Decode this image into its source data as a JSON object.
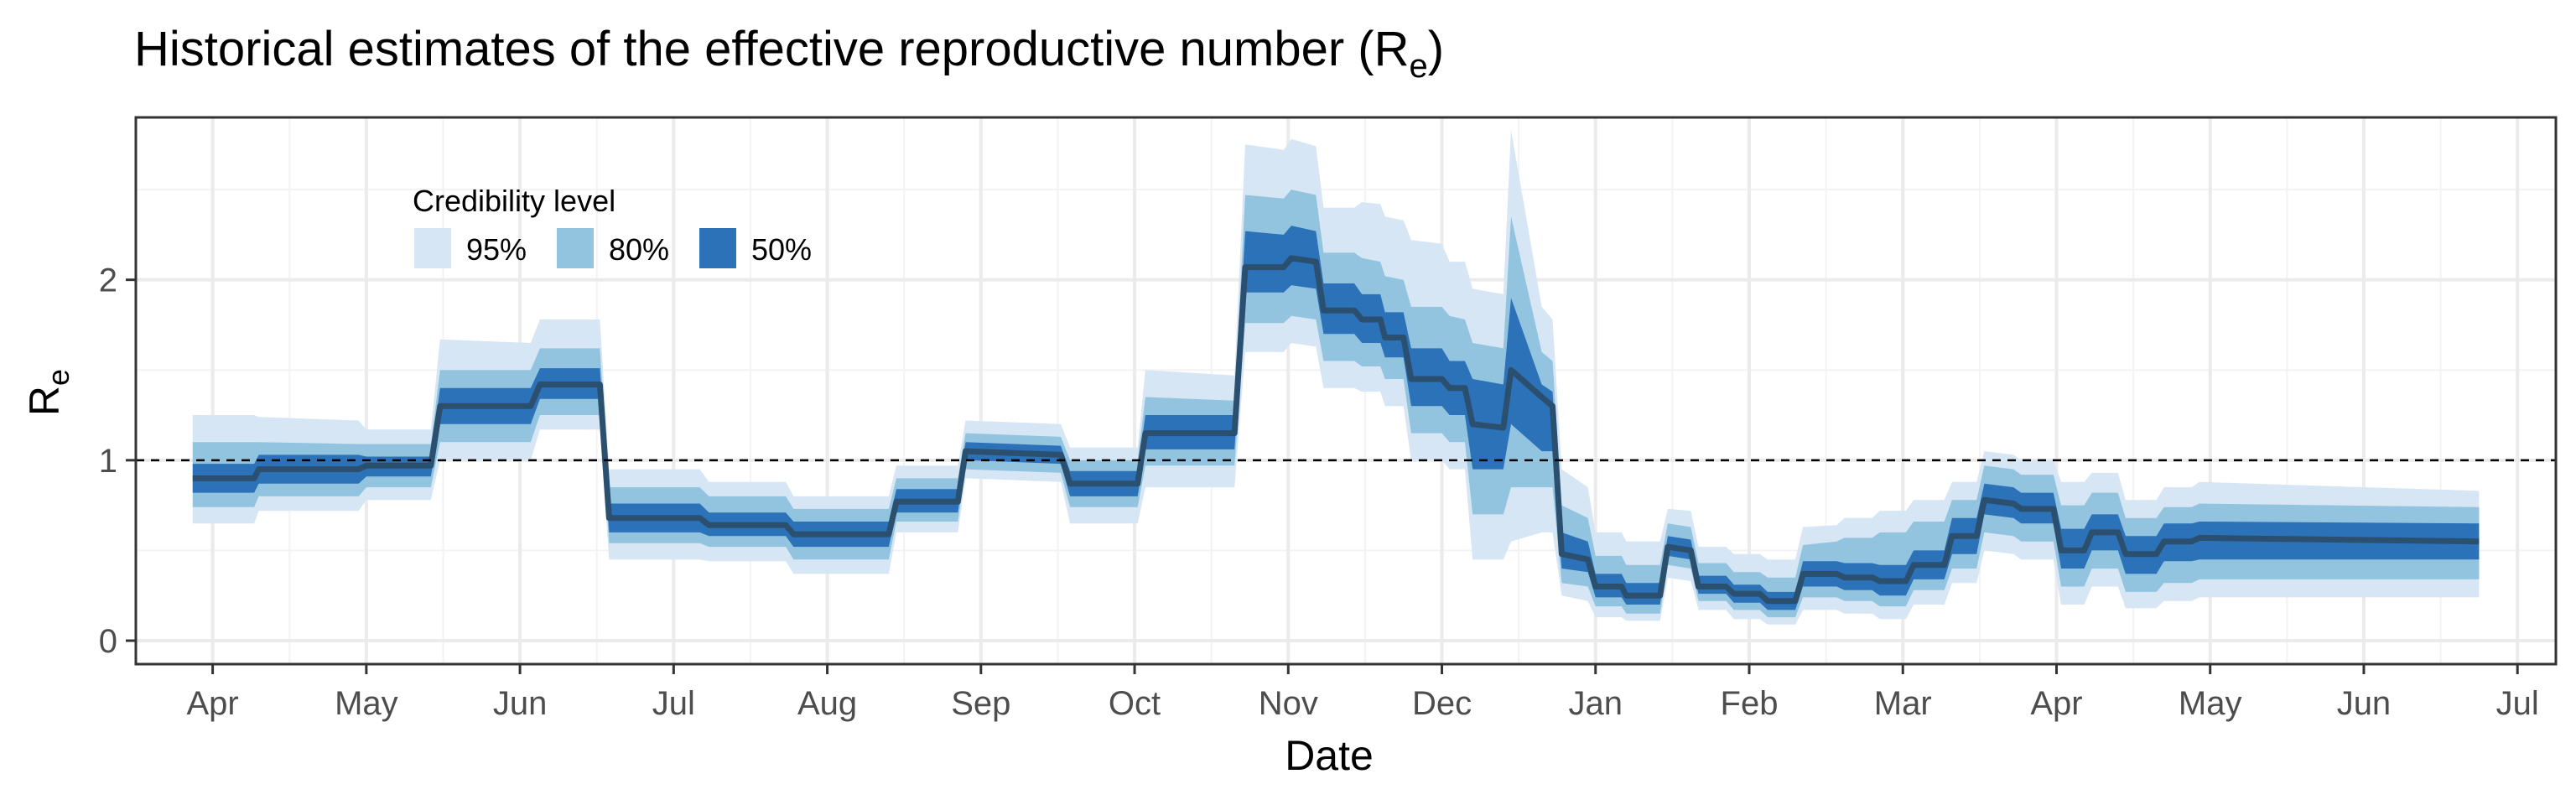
{
  "chart_data": {
    "type": "area",
    "title": "Historical estimates of the effective reproductive number (R",
    "title_subscript": "e",
    "title_suffix": ")",
    "xlabel": "Date",
    "ylabel": "R",
    "ylabel_subscript": "e",
    "x_ticks": [
      "Apr",
      "May",
      "Jun",
      "Jul",
      "Aug",
      "Sep",
      "Oct",
      "Nov",
      "Dec",
      "Jan",
      "Feb",
      "Mar",
      "Apr",
      "May",
      "Jun",
      "Jul"
    ],
    "y_ticks": [
      "0",
      "1",
      "2"
    ],
    "ylim": [
      -0.13,
      2.9
    ],
    "x_range_months": [
      -0.5,
      15.25
    ],
    "grid": true,
    "reference_line": 1,
    "legend": {
      "title": "Credibility level",
      "position": "top-left",
      "entries": [
        {
          "label": "95%",
          "color": "#d6e6f4"
        },
        {
          "label": "80%",
          "color": "#93c4df"
        },
        {
          "label": "50%",
          "color": "#2c72b8"
        }
      ]
    },
    "colors": {
      "median": "#2b4f6f",
      "band95": "#d6e6f4",
      "band80": "#93c4df",
      "band50": "#2c72b8",
      "grid": "#ebebeb"
    },
    "series": [
      {
        "x": -0.13,
        "median": 0.9,
        "lo95": 0.65,
        "hi95": 1.25,
        "lo80": 0.74,
        "hi80": 1.1,
        "lo50": 0.82,
        "hi50": 0.98
      },
      {
        "x": 0.27,
        "median": 0.9,
        "lo95": 0.65,
        "hi95": 1.25,
        "lo80": 0.74,
        "hi80": 1.1,
        "lo50": 0.82,
        "hi50": 0.98
      },
      {
        "x": 0.3,
        "median": 0.95,
        "lo95": 0.72,
        "hi95": 1.24,
        "lo80": 0.8,
        "hi80": 1.1,
        "lo50": 0.87,
        "hi50": 1.03
      },
      {
        "x": 0.95,
        "median": 0.95,
        "lo95": 0.72,
        "hi95": 1.22,
        "lo80": 0.8,
        "hi80": 1.09,
        "lo50": 0.87,
        "hi50": 1.03
      },
      {
        "x": 1.0,
        "median": 0.97,
        "lo95": 0.78,
        "hi95": 1.17,
        "lo80": 0.85,
        "hi80": 1.09,
        "lo50": 0.91,
        "hi50": 1.02
      },
      {
        "x": 1.42,
        "median": 0.97,
        "lo95": 0.78,
        "hi95": 1.17,
        "lo80": 0.85,
        "hi80": 1.09,
        "lo50": 0.91,
        "hi50": 1.02
      },
      {
        "x": 1.48,
        "median": 1.3,
        "lo95": 1.0,
        "hi95": 1.67,
        "lo80": 1.1,
        "hi80": 1.5,
        "lo50": 1.2,
        "hi50": 1.4
      },
      {
        "x": 2.07,
        "median": 1.3,
        "lo95": 1.0,
        "hi95": 1.65,
        "lo80": 1.1,
        "hi80": 1.5,
        "lo50": 1.2,
        "hi50": 1.4
      },
      {
        "x": 2.13,
        "median": 1.42,
        "lo95": 1.17,
        "hi95": 1.78,
        "lo80": 1.25,
        "hi80": 1.62,
        "lo50": 1.34,
        "hi50": 1.51
      },
      {
        "x": 2.52,
        "median": 1.42,
        "lo95": 1.17,
        "hi95": 1.78,
        "lo80": 1.25,
        "hi80": 1.62,
        "lo50": 1.34,
        "hi50": 1.51
      },
      {
        "x": 2.58,
        "median": 0.68,
        "lo95": 0.45,
        "hi95": 0.95,
        "lo80": 0.54,
        "hi80": 0.85,
        "lo50": 0.6,
        "hi50": 0.76
      },
      {
        "x": 3.17,
        "median": 0.68,
        "lo95": 0.45,
        "hi95": 0.95,
        "lo80": 0.54,
        "hi80": 0.85,
        "lo50": 0.6,
        "hi50": 0.76
      },
      {
        "x": 3.23,
        "median": 0.64,
        "lo95": 0.44,
        "hi95": 0.88,
        "lo80": 0.52,
        "hi80": 0.8,
        "lo50": 0.58,
        "hi50": 0.71
      },
      {
        "x": 3.73,
        "median": 0.64,
        "lo95": 0.44,
        "hi95": 0.88,
        "lo80": 0.52,
        "hi80": 0.8,
        "lo50": 0.58,
        "hi50": 0.71
      },
      {
        "x": 3.78,
        "median": 0.59,
        "lo95": 0.37,
        "hi95": 0.8,
        "lo80": 0.45,
        "hi80": 0.73,
        "lo50": 0.52,
        "hi50": 0.66
      },
      {
        "x": 4.4,
        "median": 0.59,
        "lo95": 0.37,
        "hi95": 0.8,
        "lo80": 0.45,
        "hi80": 0.73,
        "lo50": 0.52,
        "hi50": 0.66
      },
      {
        "x": 4.45,
        "median": 0.77,
        "lo95": 0.6,
        "hi95": 0.97,
        "lo80": 0.66,
        "hi80": 0.9,
        "lo50": 0.71,
        "hi50": 0.84
      },
      {
        "x": 4.85,
        "median": 0.77,
        "lo95": 0.6,
        "hi95": 0.97,
        "lo80": 0.66,
        "hi80": 0.9,
        "lo50": 0.71,
        "hi50": 0.84
      },
      {
        "x": 4.9,
        "median": 1.05,
        "lo95": 0.9,
        "hi95": 1.22,
        "lo80": 0.95,
        "hi80": 1.15,
        "lo50": 1.0,
        "hi50": 1.1
      },
      {
        "x": 5.52,
        "median": 1.03,
        "lo95": 0.88,
        "hi95": 1.2,
        "lo80": 0.93,
        "hi80": 1.13,
        "lo50": 0.98,
        "hi50": 1.08
      },
      {
        "x": 5.58,
        "median": 0.87,
        "lo95": 0.65,
        "hi95": 1.07,
        "lo80": 0.74,
        "hi80": 1.0,
        "lo50": 0.8,
        "hi50": 0.94
      },
      {
        "x": 6.02,
        "median": 0.87,
        "lo95": 0.65,
        "hi95": 1.07,
        "lo80": 0.74,
        "hi80": 1.0,
        "lo50": 0.8,
        "hi50": 0.94
      },
      {
        "x": 6.07,
        "median": 1.15,
        "lo95": 0.85,
        "hi95": 1.5,
        "lo80": 0.97,
        "hi80": 1.35,
        "lo50": 1.06,
        "hi50": 1.25
      },
      {
        "x": 6.65,
        "median": 1.15,
        "lo95": 0.85,
        "hi95": 1.47,
        "lo80": 0.97,
        "hi80": 1.33,
        "lo50": 1.06,
        "hi50": 1.25
      },
      {
        "x": 6.72,
        "median": 2.07,
        "lo95": 1.6,
        "hi95": 2.75,
        "lo80": 1.76,
        "hi80": 2.47,
        "lo50": 1.93,
        "hi50": 2.27
      },
      {
        "x": 6.97,
        "median": 2.07,
        "lo95": 1.6,
        "hi95": 2.72,
        "lo80": 1.76,
        "hi80": 2.45,
        "lo50": 1.93,
        "hi50": 2.25
      },
      {
        "x": 7.02,
        "median": 2.12,
        "lo95": 1.65,
        "hi95": 2.78,
        "lo80": 1.8,
        "hi80": 2.5,
        "lo50": 1.97,
        "hi50": 2.3
      },
      {
        "x": 7.18,
        "median": 2.1,
        "lo95": 1.63,
        "hi95": 2.74,
        "lo80": 1.78,
        "hi80": 2.47,
        "lo50": 1.95,
        "hi50": 2.27
      },
      {
        "x": 7.23,
        "median": 1.83,
        "lo95": 1.4,
        "hi95": 2.4,
        "lo80": 1.55,
        "hi80": 2.15,
        "lo50": 1.7,
        "hi50": 1.98
      },
      {
        "x": 7.43,
        "median": 1.83,
        "lo95": 1.4,
        "hi95": 2.4,
        "lo80": 1.55,
        "hi80": 2.15,
        "lo50": 1.7,
        "hi50": 1.98
      },
      {
        "x": 7.48,
        "median": 1.78,
        "lo95": 1.38,
        "hi95": 2.43,
        "lo80": 1.52,
        "hi80": 2.12,
        "lo50": 1.65,
        "hi50": 1.92
      },
      {
        "x": 7.6,
        "median": 1.78,
        "lo95": 1.38,
        "hi95": 2.42,
        "lo80": 1.52,
        "hi80": 2.1,
        "lo50": 1.65,
        "hi50": 1.92
      },
      {
        "x": 7.63,
        "median": 1.68,
        "lo95": 1.3,
        "hi95": 2.35,
        "lo80": 1.45,
        "hi80": 2.02,
        "lo50": 1.57,
        "hi50": 1.82
      },
      {
        "x": 7.75,
        "median": 1.68,
        "lo95": 1.3,
        "hi95": 2.33,
        "lo80": 1.45,
        "hi80": 2.0,
        "lo50": 1.57,
        "hi50": 1.82
      },
      {
        "x": 7.8,
        "median": 1.45,
        "lo95": 1.0,
        "hi95": 2.22,
        "lo80": 1.15,
        "hi80": 1.85,
        "lo50": 1.3,
        "hi50": 1.62
      },
      {
        "x": 8.0,
        "median": 1.45,
        "lo95": 1.0,
        "hi95": 2.2,
        "lo80": 1.15,
        "hi80": 1.85,
        "lo50": 1.3,
        "hi50": 1.62
      },
      {
        "x": 8.05,
        "median": 1.4,
        "lo95": 0.95,
        "hi95": 2.1,
        "lo80": 1.1,
        "hi80": 1.8,
        "lo50": 1.25,
        "hi50": 1.55
      },
      {
        "x": 8.15,
        "median": 1.4,
        "lo95": 0.95,
        "hi95": 2.1,
        "lo80": 1.1,
        "hi80": 1.78,
        "lo50": 1.25,
        "hi50": 1.55
      },
      {
        "x": 8.2,
        "median": 1.2,
        "lo95": 0.45,
        "hi95": 1.95,
        "lo80": 0.7,
        "hi80": 1.65,
        "lo50": 0.95,
        "hi50": 1.45
      },
      {
        "x": 8.4,
        "median": 1.18,
        "lo95": 0.45,
        "hi95": 1.92,
        "lo80": 0.7,
        "hi80": 1.62,
        "lo50": 0.95,
        "hi50": 1.42
      },
      {
        "x": 8.45,
        "median": 1.5,
        "lo95": 0.55,
        "hi95": 2.83,
        "lo80": 0.85,
        "hi80": 2.35,
        "lo50": 1.2,
        "hi50": 1.9
      },
      {
        "x": 8.65,
        "median": 1.35,
        "lo95": 0.6,
        "hi95": 1.85,
        "lo80": 0.85,
        "hi80": 1.6,
        "lo50": 1.05,
        "hi50": 1.42
      },
      {
        "x": 8.72,
        "median": 1.3,
        "lo95": 0.6,
        "hi95": 1.78,
        "lo80": 0.85,
        "hi80": 1.55,
        "lo50": 1.05,
        "hi50": 1.38
      },
      {
        "x": 8.78,
        "median": 0.48,
        "lo95": 0.25,
        "hi95": 0.95,
        "lo80": 0.32,
        "hi80": 0.75,
        "lo50": 0.4,
        "hi50": 0.6
      },
      {
        "x": 8.95,
        "median": 0.45,
        "lo95": 0.22,
        "hi95": 0.85,
        "lo80": 0.3,
        "hi80": 0.68,
        "lo50": 0.38,
        "hi50": 0.55
      },
      {
        "x": 9.0,
        "median": 0.3,
        "lo95": 0.13,
        "hi95": 0.6,
        "lo80": 0.19,
        "hi80": 0.47,
        "lo50": 0.24,
        "hi50": 0.37
      },
      {
        "x": 9.17,
        "median": 0.3,
        "lo95": 0.13,
        "hi95": 0.6,
        "lo80": 0.19,
        "hi80": 0.47,
        "lo50": 0.24,
        "hi50": 0.37
      },
      {
        "x": 9.2,
        "median": 0.25,
        "lo95": 0.11,
        "hi95": 0.55,
        "lo80": 0.15,
        "hi80": 0.42,
        "lo50": 0.2,
        "hi50": 0.32
      },
      {
        "x": 9.42,
        "median": 0.25,
        "lo95": 0.11,
        "hi95": 0.55,
        "lo80": 0.15,
        "hi80": 0.42,
        "lo50": 0.2,
        "hi50": 0.32
      },
      {
        "x": 9.47,
        "median": 0.52,
        "lo95": 0.35,
        "hi95": 0.73,
        "lo80": 0.42,
        "hi80": 0.65,
        "lo50": 0.47,
        "hi50": 0.58
      },
      {
        "x": 9.62,
        "median": 0.5,
        "lo95": 0.33,
        "hi95": 0.72,
        "lo80": 0.4,
        "hi80": 0.63,
        "lo50": 0.45,
        "hi50": 0.56
      },
      {
        "x": 9.67,
        "median": 0.3,
        "lo95": 0.17,
        "hi95": 0.52,
        "lo80": 0.22,
        "hi80": 0.43,
        "lo50": 0.26,
        "hi50": 0.36
      },
      {
        "x": 9.85,
        "median": 0.3,
        "lo95": 0.17,
        "hi95": 0.52,
        "lo80": 0.22,
        "hi80": 0.43,
        "lo50": 0.26,
        "hi50": 0.36
      },
      {
        "x": 9.9,
        "median": 0.26,
        "lo95": 0.12,
        "hi95": 0.48,
        "lo80": 0.17,
        "hi80": 0.38,
        "lo50": 0.21,
        "hi50": 0.31
      },
      {
        "x": 10.07,
        "median": 0.26,
        "lo95": 0.12,
        "hi95": 0.48,
        "lo80": 0.17,
        "hi80": 0.38,
        "lo50": 0.21,
        "hi50": 0.31
      },
      {
        "x": 10.12,
        "median": 0.22,
        "lo95": 0.09,
        "hi95": 0.45,
        "lo80": 0.13,
        "hi80": 0.35,
        "lo50": 0.17,
        "hi50": 0.27
      },
      {
        "x": 10.3,
        "median": 0.22,
        "lo95": 0.09,
        "hi95": 0.45,
        "lo80": 0.13,
        "hi80": 0.35,
        "lo50": 0.17,
        "hi50": 0.27
      },
      {
        "x": 10.35,
        "median": 0.37,
        "lo95": 0.17,
        "hi95": 0.63,
        "lo80": 0.24,
        "hi80": 0.53,
        "lo50": 0.3,
        "hi50": 0.44
      },
      {
        "x": 10.57,
        "median": 0.37,
        "lo95": 0.17,
        "hi95": 0.64,
        "lo80": 0.24,
        "hi80": 0.55,
        "lo50": 0.3,
        "hi50": 0.44
      },
      {
        "x": 10.62,
        "median": 0.35,
        "lo95": 0.15,
        "hi95": 0.68,
        "lo80": 0.22,
        "hi80": 0.57,
        "lo50": 0.28,
        "hi50": 0.43
      },
      {
        "x": 10.8,
        "median": 0.35,
        "lo95": 0.15,
        "hi95": 0.68,
        "lo80": 0.22,
        "hi80": 0.57,
        "lo50": 0.28,
        "hi50": 0.43
      },
      {
        "x": 10.85,
        "median": 0.33,
        "lo95": 0.12,
        "hi95": 0.72,
        "lo80": 0.19,
        "hi80": 0.6,
        "lo50": 0.25,
        "hi50": 0.42
      },
      {
        "x": 11.02,
        "median": 0.33,
        "lo95": 0.12,
        "hi95": 0.72,
        "lo80": 0.19,
        "hi80": 0.6,
        "lo50": 0.25,
        "hi50": 0.42
      },
      {
        "x": 11.07,
        "median": 0.42,
        "lo95": 0.2,
        "hi95": 0.78,
        "lo80": 0.28,
        "hi80": 0.66,
        "lo50": 0.34,
        "hi50": 0.5
      },
      {
        "x": 11.27,
        "median": 0.42,
        "lo95": 0.2,
        "hi95": 0.78,
        "lo80": 0.28,
        "hi80": 0.66,
        "lo50": 0.34,
        "hi50": 0.5
      },
      {
        "x": 11.32,
        "median": 0.58,
        "lo95": 0.32,
        "hi95": 0.88,
        "lo80": 0.4,
        "hi80": 0.78,
        "lo50": 0.48,
        "hi50": 0.68
      },
      {
        "x": 11.48,
        "median": 0.58,
        "lo95": 0.32,
        "hi95": 0.88,
        "lo80": 0.4,
        "hi80": 0.78,
        "lo50": 0.48,
        "hi50": 0.68
      },
      {
        "x": 11.53,
        "median": 0.78,
        "lo95": 0.5,
        "hi95": 1.05,
        "lo80": 0.6,
        "hi80": 0.97,
        "lo50": 0.7,
        "hi50": 0.87
      },
      {
        "x": 11.72,
        "median": 0.76,
        "lo95": 0.48,
        "hi95": 1.03,
        "lo80": 0.58,
        "hi80": 0.95,
        "lo50": 0.68,
        "hi50": 0.85
      },
      {
        "x": 11.77,
        "median": 0.73,
        "lo95": 0.45,
        "hi95": 1.0,
        "lo80": 0.55,
        "hi80": 0.92,
        "lo50": 0.65,
        "hi50": 0.82
      },
      {
        "x": 11.98,
        "median": 0.73,
        "lo95": 0.45,
        "hi95": 1.0,
        "lo80": 0.55,
        "hi80": 0.92,
        "lo50": 0.65,
        "hi50": 0.82
      },
      {
        "x": 12.03,
        "median": 0.5,
        "lo95": 0.2,
        "hi95": 0.88,
        "lo80": 0.3,
        "hi80": 0.75,
        "lo50": 0.4,
        "hi50": 0.62
      },
      {
        "x": 12.18,
        "median": 0.5,
        "lo95": 0.2,
        "hi95": 0.88,
        "lo80": 0.3,
        "hi80": 0.75,
        "lo50": 0.4,
        "hi50": 0.62
      },
      {
        "x": 12.23,
        "median": 0.6,
        "lo95": 0.3,
        "hi95": 0.93,
        "lo80": 0.4,
        "hi80": 0.82,
        "lo50": 0.5,
        "hi50": 0.7
      },
      {
        "x": 12.4,
        "median": 0.6,
        "lo95": 0.3,
        "hi95": 0.93,
        "lo80": 0.4,
        "hi80": 0.82,
        "lo50": 0.5,
        "hi50": 0.7
      },
      {
        "x": 12.45,
        "median": 0.48,
        "lo95": 0.18,
        "hi95": 0.78,
        "lo80": 0.27,
        "hi80": 0.68,
        "lo50": 0.37,
        "hi50": 0.58
      },
      {
        "x": 12.65,
        "median": 0.48,
        "lo95": 0.18,
        "hi95": 0.78,
        "lo80": 0.27,
        "hi80": 0.68,
        "lo50": 0.37,
        "hi50": 0.58
      },
      {
        "x": 12.7,
        "median": 0.55,
        "lo95": 0.22,
        "hi95": 0.85,
        "lo80": 0.32,
        "hi80": 0.74,
        "lo50": 0.44,
        "hi50": 0.65
      },
      {
        "x": 12.88,
        "median": 0.55,
        "lo95": 0.22,
        "hi95": 0.85,
        "lo80": 0.32,
        "hi80": 0.74,
        "lo50": 0.44,
        "hi50": 0.65
      },
      {
        "x": 12.93,
        "median": 0.57,
        "lo95": 0.24,
        "hi95": 0.88,
        "lo80": 0.34,
        "hi80": 0.76,
        "lo50": 0.45,
        "hi50": 0.66
      },
      {
        "x": 14.75,
        "median": 0.55,
        "lo95": 0.24,
        "hi95": 0.83,
        "lo80": 0.34,
        "hi80": 0.74,
        "lo50": 0.45,
        "hi50": 0.65
      }
    ]
  }
}
